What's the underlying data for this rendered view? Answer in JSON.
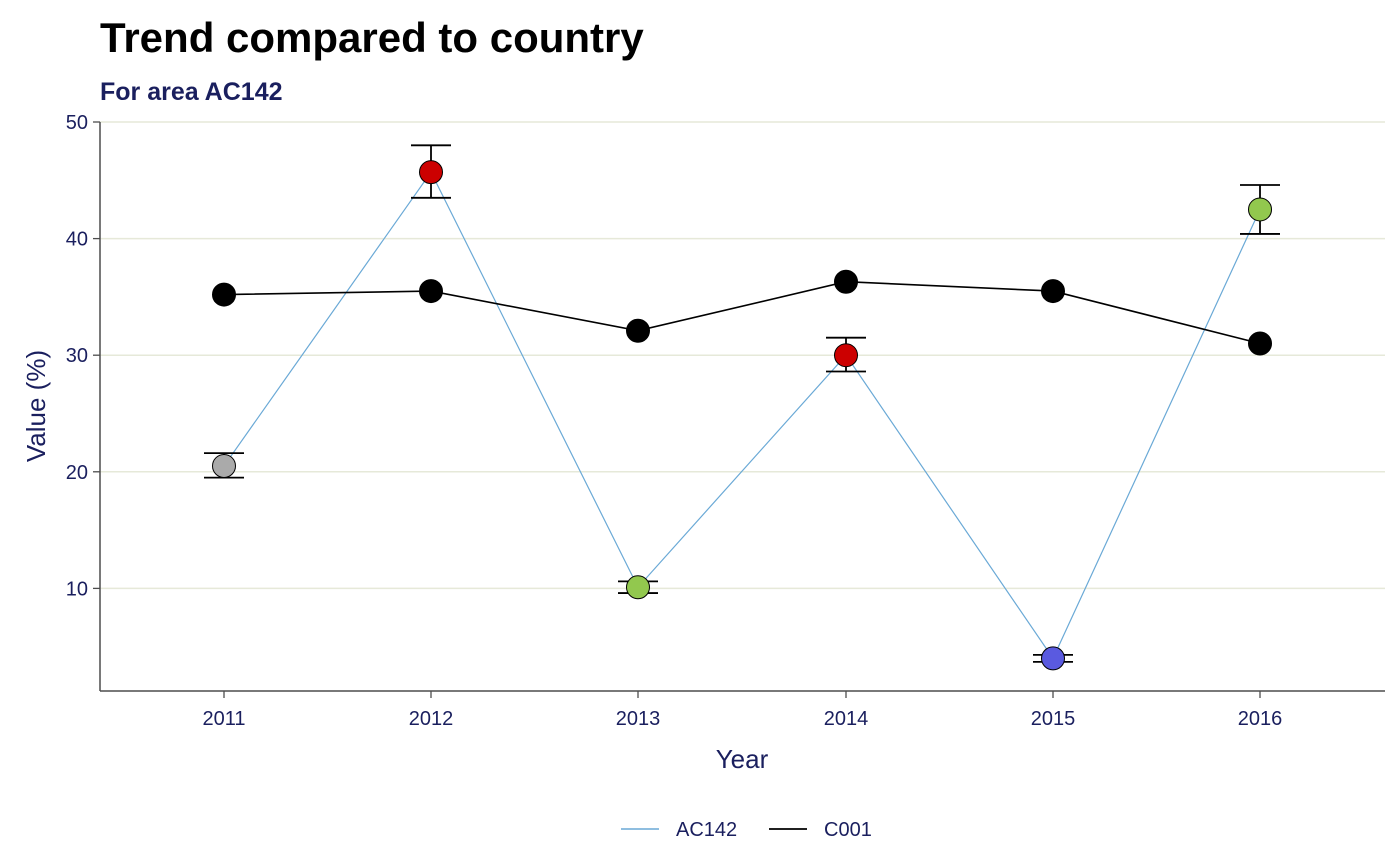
{
  "colors": {
    "text": "#1a1f5e",
    "grid": "#e6e9d9",
    "axis": "#4d4d4d",
    "ac142_line": "#6aa9d6",
    "c001_line": "#000000",
    "red": "#cc0000",
    "green": "#92c84e",
    "grey": "#aaaaaa",
    "blue": "#5a5ae0",
    "black": "#000000"
  },
  "chart_data": {
    "type": "line",
    "title": "Trend compared to country",
    "subtitle": "For area AC142",
    "xlabel": "Year",
    "ylabel": "Value (%)",
    "x": [
      "2011",
      "2012",
      "2013",
      "2014",
      "2015",
      "2016"
    ],
    "ylim": [
      1.2,
      50
    ],
    "yticks": [
      10,
      20,
      30,
      40,
      50
    ],
    "grid": "horizontal",
    "legend_position": "bottom",
    "series": [
      {
        "name": "AC142",
        "color": "#6aa9d6",
        "values": [
          20.5,
          45.7,
          10.1,
          30.0,
          4.0,
          42.5
        ],
        "error_low": [
          19.5,
          43.5,
          9.6,
          28.6,
          3.7,
          40.4
        ],
        "error_high": [
          21.6,
          48.0,
          10.6,
          31.5,
          4.3,
          44.6
        ],
        "point_colors": [
          "#aaaaaa",
          "#cc0000",
          "#92c84e",
          "#cc0000",
          "#5a5ae0",
          "#92c84e"
        ]
      },
      {
        "name": "C001",
        "color": "#000000",
        "values": [
          35.2,
          35.5,
          32.1,
          36.3,
          35.5,
          31.0
        ]
      }
    ]
  }
}
